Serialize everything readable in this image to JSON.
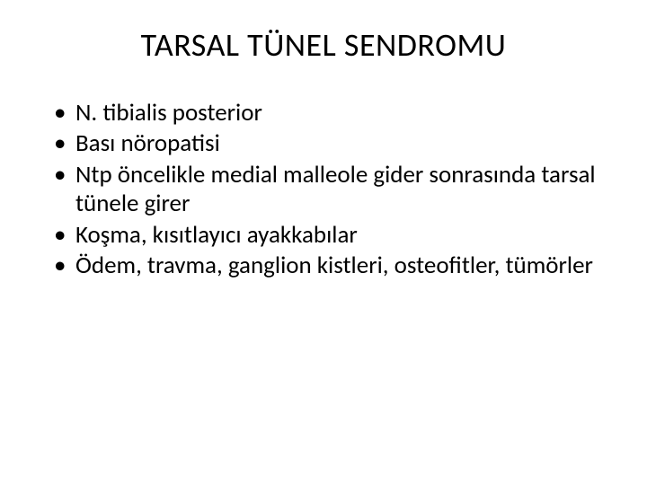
{
  "slide": {
    "title": "TARSAL TÜNEL SENDROMU",
    "title_fontsize": 36,
    "title_color": "#000000",
    "title_align": "center",
    "background_color": "#ffffff",
    "text_color": "#000000",
    "font_family": "Calibri",
    "bullets": [
      "N. tibialis posterior",
      "Bası nöropatisi",
      "Ntp öncelikle medial malleole gider sonrasında tarsal tünele girer",
      "Koşma, kısıtlayıcı ayakkabılar",
      "Ödem, travma, ganglion kistleri, osteofitler, tümörler"
    ],
    "bullet_fontsize": 27,
    "bullet_marker": "•",
    "bullet_color": "#000000"
  }
}
